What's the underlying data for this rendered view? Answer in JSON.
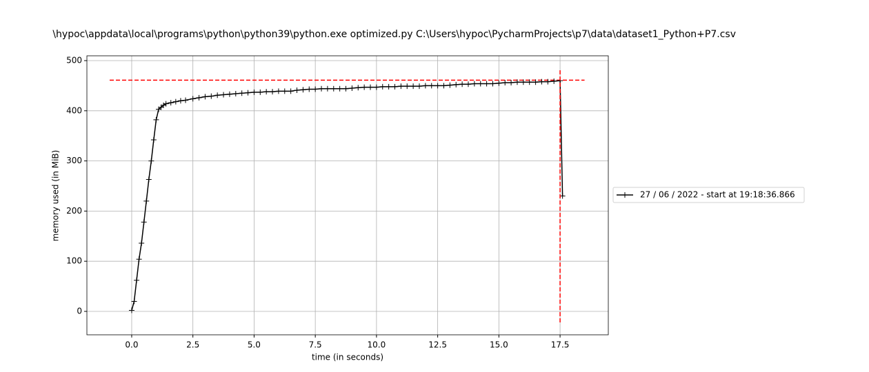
{
  "chart_data": {
    "type": "line",
    "title": "\\hypoc\\appdata\\local\\programs\\python\\python39\\python.exe optimized.py C:\\Users\\hypoc\\PycharmProjects\\p7\\data\\dataset1_Python+P7.csv",
    "x_label": "time (in seconds)",
    "y_label": "memory used (in MiB)",
    "x": [
      0.0,
      0.1,
      0.2,
      0.3,
      0.4,
      0.5,
      0.6,
      0.7,
      0.8,
      0.9,
      1.0,
      1.1,
      1.2,
      1.3,
      1.4,
      1.6,
      1.8,
      2.0,
      2.2,
      2.5,
      2.75,
      3.0,
      3.25,
      3.5,
      3.75,
      4.0,
      4.25,
      4.5,
      4.75,
      5.0,
      5.25,
      5.5,
      5.75,
      6.0,
      6.25,
      6.5,
      6.75,
      7.0,
      7.25,
      7.5,
      7.75,
      8.0,
      8.25,
      8.5,
      8.75,
      9.0,
      9.25,
      9.5,
      9.75,
      10.0,
      10.25,
      10.5,
      10.75,
      11.0,
      11.25,
      11.5,
      11.75,
      12.0,
      12.25,
      12.5,
      12.75,
      13.0,
      13.25,
      13.5,
      13.75,
      14.0,
      14.25,
      14.5,
      14.75,
      15.0,
      15.25,
      15.5,
      15.75,
      16.0,
      16.25,
      16.5,
      16.75,
      17.0,
      17.25,
      17.5,
      17.6
    ],
    "series": [
      {
        "name": "27 / 06 / 2022 - start at 19:18:36.866",
        "color": "#000000",
        "values": [
          2,
          20,
          62,
          104,
          136,
          178,
          220,
          263,
          300,
          342,
          382,
          403,
          407,
          411,
          414,
          416,
          418,
          420,
          421,
          424,
          426,
          428,
          429,
          431,
          432,
          433,
          434,
          435,
          436,
          437,
          437,
          438,
          438,
          439,
          439,
          439,
          441,
          442,
          443,
          443,
          444,
          444,
          444,
          444,
          444,
          445,
          446,
          447,
          447,
          447,
          448,
          448,
          448,
          449,
          449,
          449,
          449,
          450,
          450,
          450,
          450,
          451,
          452,
          453,
          453,
          454,
          454,
          454,
          454,
          455,
          456,
          456,
          457,
          457,
          457,
          457,
          458,
          458,
          459,
          460,
          230
        ]
      }
    ],
    "max_memory_line": {
      "color": "#ff0000",
      "y": 461,
      "xmin": -0.9,
      "xmax": 18.5
    },
    "end_time_line": {
      "color": "#ff0000",
      "x": 17.5,
      "ymin": -22,
      "ymax": 483
    },
    "xlim": [
      -1.83,
      19.47
    ],
    "ylim": [
      -46.7,
      509.6
    ],
    "xticks": [
      {
        "value": 0,
        "label": "0.0"
      },
      2.5,
      {
        "value": 5,
        "label": "5.0"
      },
      7.5,
      {
        "value": 10,
        "label": "10.0"
      },
      12.5,
      {
        "value": 15,
        "label": "15.0"
      },
      17.5
    ],
    "yticks": [
      0,
      100,
      200,
      300,
      400,
      500
    ],
    "grid": true,
    "legend": "right"
  }
}
